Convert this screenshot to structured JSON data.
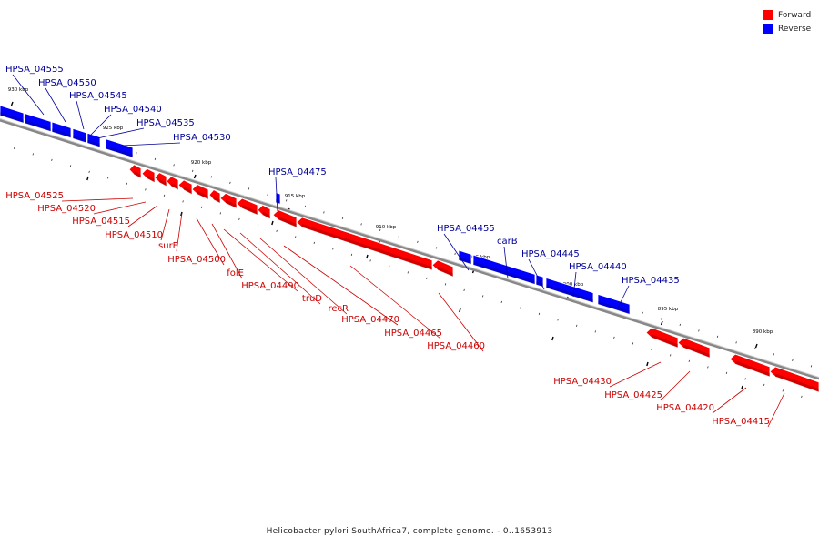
{
  "legend": [
    {
      "label": "Forward",
      "color": "#ff0000"
    },
    {
      "label": "Reverse",
      "color": "#0000ff"
    }
  ],
  "caption": "Helicobacter pylori SouthAfrica7, complete genome. - 0..1653913",
  "colors": {
    "forward": "#ff0000",
    "reverse": "#0000ff",
    "backbone": "#888888",
    "forward_label": "#cc0000",
    "reverse_label": "#000099"
  },
  "ticks": [
    "930 kbp",
    "925 kbp",
    "920 kbp",
    "915 kbp",
    "910 kbp",
    "905 kbp",
    "900 kbp",
    "895 kbp",
    "890 kbp"
  ],
  "genes": [
    {
      "id": "HPSA_04555",
      "strand": "reverse"
    },
    {
      "id": "HPSA_04550",
      "strand": "reverse"
    },
    {
      "id": "HPSA_04545",
      "strand": "reverse"
    },
    {
      "id": "HPSA_04540",
      "strand": "reverse"
    },
    {
      "id": "HPSA_04535",
      "strand": "reverse"
    },
    {
      "id": "HPSA_04530",
      "strand": "reverse"
    },
    {
      "id": "HPSA_04475",
      "strand": "reverse"
    },
    {
      "id": "HPSA_04455",
      "strand": "reverse"
    },
    {
      "id": "carB",
      "strand": "reverse"
    },
    {
      "id": "HPSA_04445",
      "strand": "reverse"
    },
    {
      "id": "HPSA_04440",
      "strand": "reverse"
    },
    {
      "id": "HPSA_04435",
      "strand": "reverse"
    },
    {
      "id": "HPSA_04525",
      "strand": "forward"
    },
    {
      "id": "HPSA_04520",
      "strand": "forward"
    },
    {
      "id": "HPSA_04515",
      "strand": "forward"
    },
    {
      "id": "HPSA_04510",
      "strand": "forward"
    },
    {
      "id": "surE",
      "strand": "forward"
    },
    {
      "id": "HPSA_04500",
      "strand": "forward"
    },
    {
      "id": "folE",
      "strand": "forward"
    },
    {
      "id": "HPSA_04490",
      "strand": "forward"
    },
    {
      "id": "truD",
      "strand": "forward"
    },
    {
      "id": "recR",
      "strand": "forward"
    },
    {
      "id": "HPSA_04470",
      "strand": "forward"
    },
    {
      "id": "HPSA_04465",
      "strand": "forward"
    },
    {
      "id": "HPSA_04460",
      "strand": "forward"
    },
    {
      "id": "HPSA_04430",
      "strand": "forward"
    },
    {
      "id": "HPSA_04425",
      "strand": "forward"
    },
    {
      "id": "HPSA_04420",
      "strand": "forward"
    },
    {
      "id": "HPSA_04415",
      "strand": "forward"
    }
  ]
}
